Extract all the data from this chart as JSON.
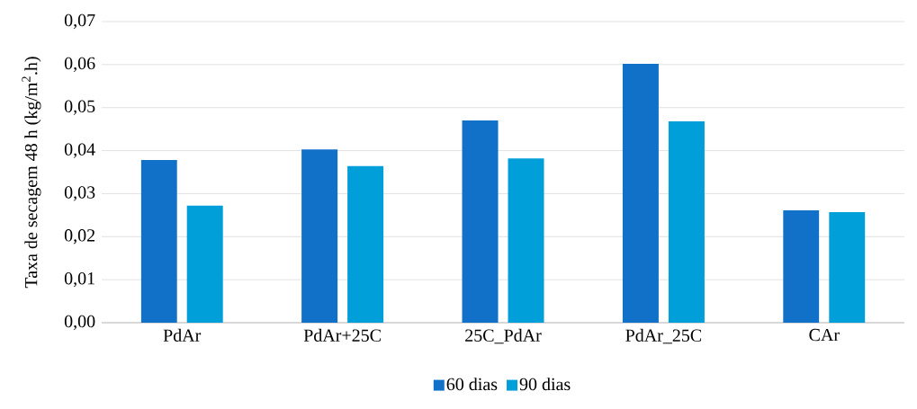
{
  "chart_data": {
    "type": "bar",
    "ylabel": "Taxa de secagem 48 h (kg/m$^{2}$.h)",
    "categories": [
      "PdAr",
      "PdAr+25C",
      "25C_PdAr",
      "PdAr_25C",
      "CAr"
    ],
    "series": [
      {
        "name": "60 dias",
        "color": "#1170c8",
        "values": [
          0.0378,
          0.0403,
          0.047,
          0.0602,
          0.0261
        ]
      },
      {
        "name": "90 dias",
        "color": "#009fda",
        "values": [
          0.0272,
          0.0364,
          0.0382,
          0.0468,
          0.0257
        ]
      }
    ],
    "ylim": [
      0,
      0.07
    ],
    "yticks": [
      {
        "value": 0,
        "label": "0,00"
      },
      {
        "value": 0.01,
        "label": "0,01"
      },
      {
        "value": 0.02,
        "label": "0,02"
      },
      {
        "value": 0.03,
        "label": "0,03"
      },
      {
        "value": 0.04,
        "label": "0,04"
      },
      {
        "value": 0.05,
        "label": "0,05"
      },
      {
        "value": 0.06,
        "label": "0,06"
      },
      {
        "value": 0.07,
        "label": "0,07"
      }
    ],
    "grid": "y",
    "legend": "bottom"
  }
}
